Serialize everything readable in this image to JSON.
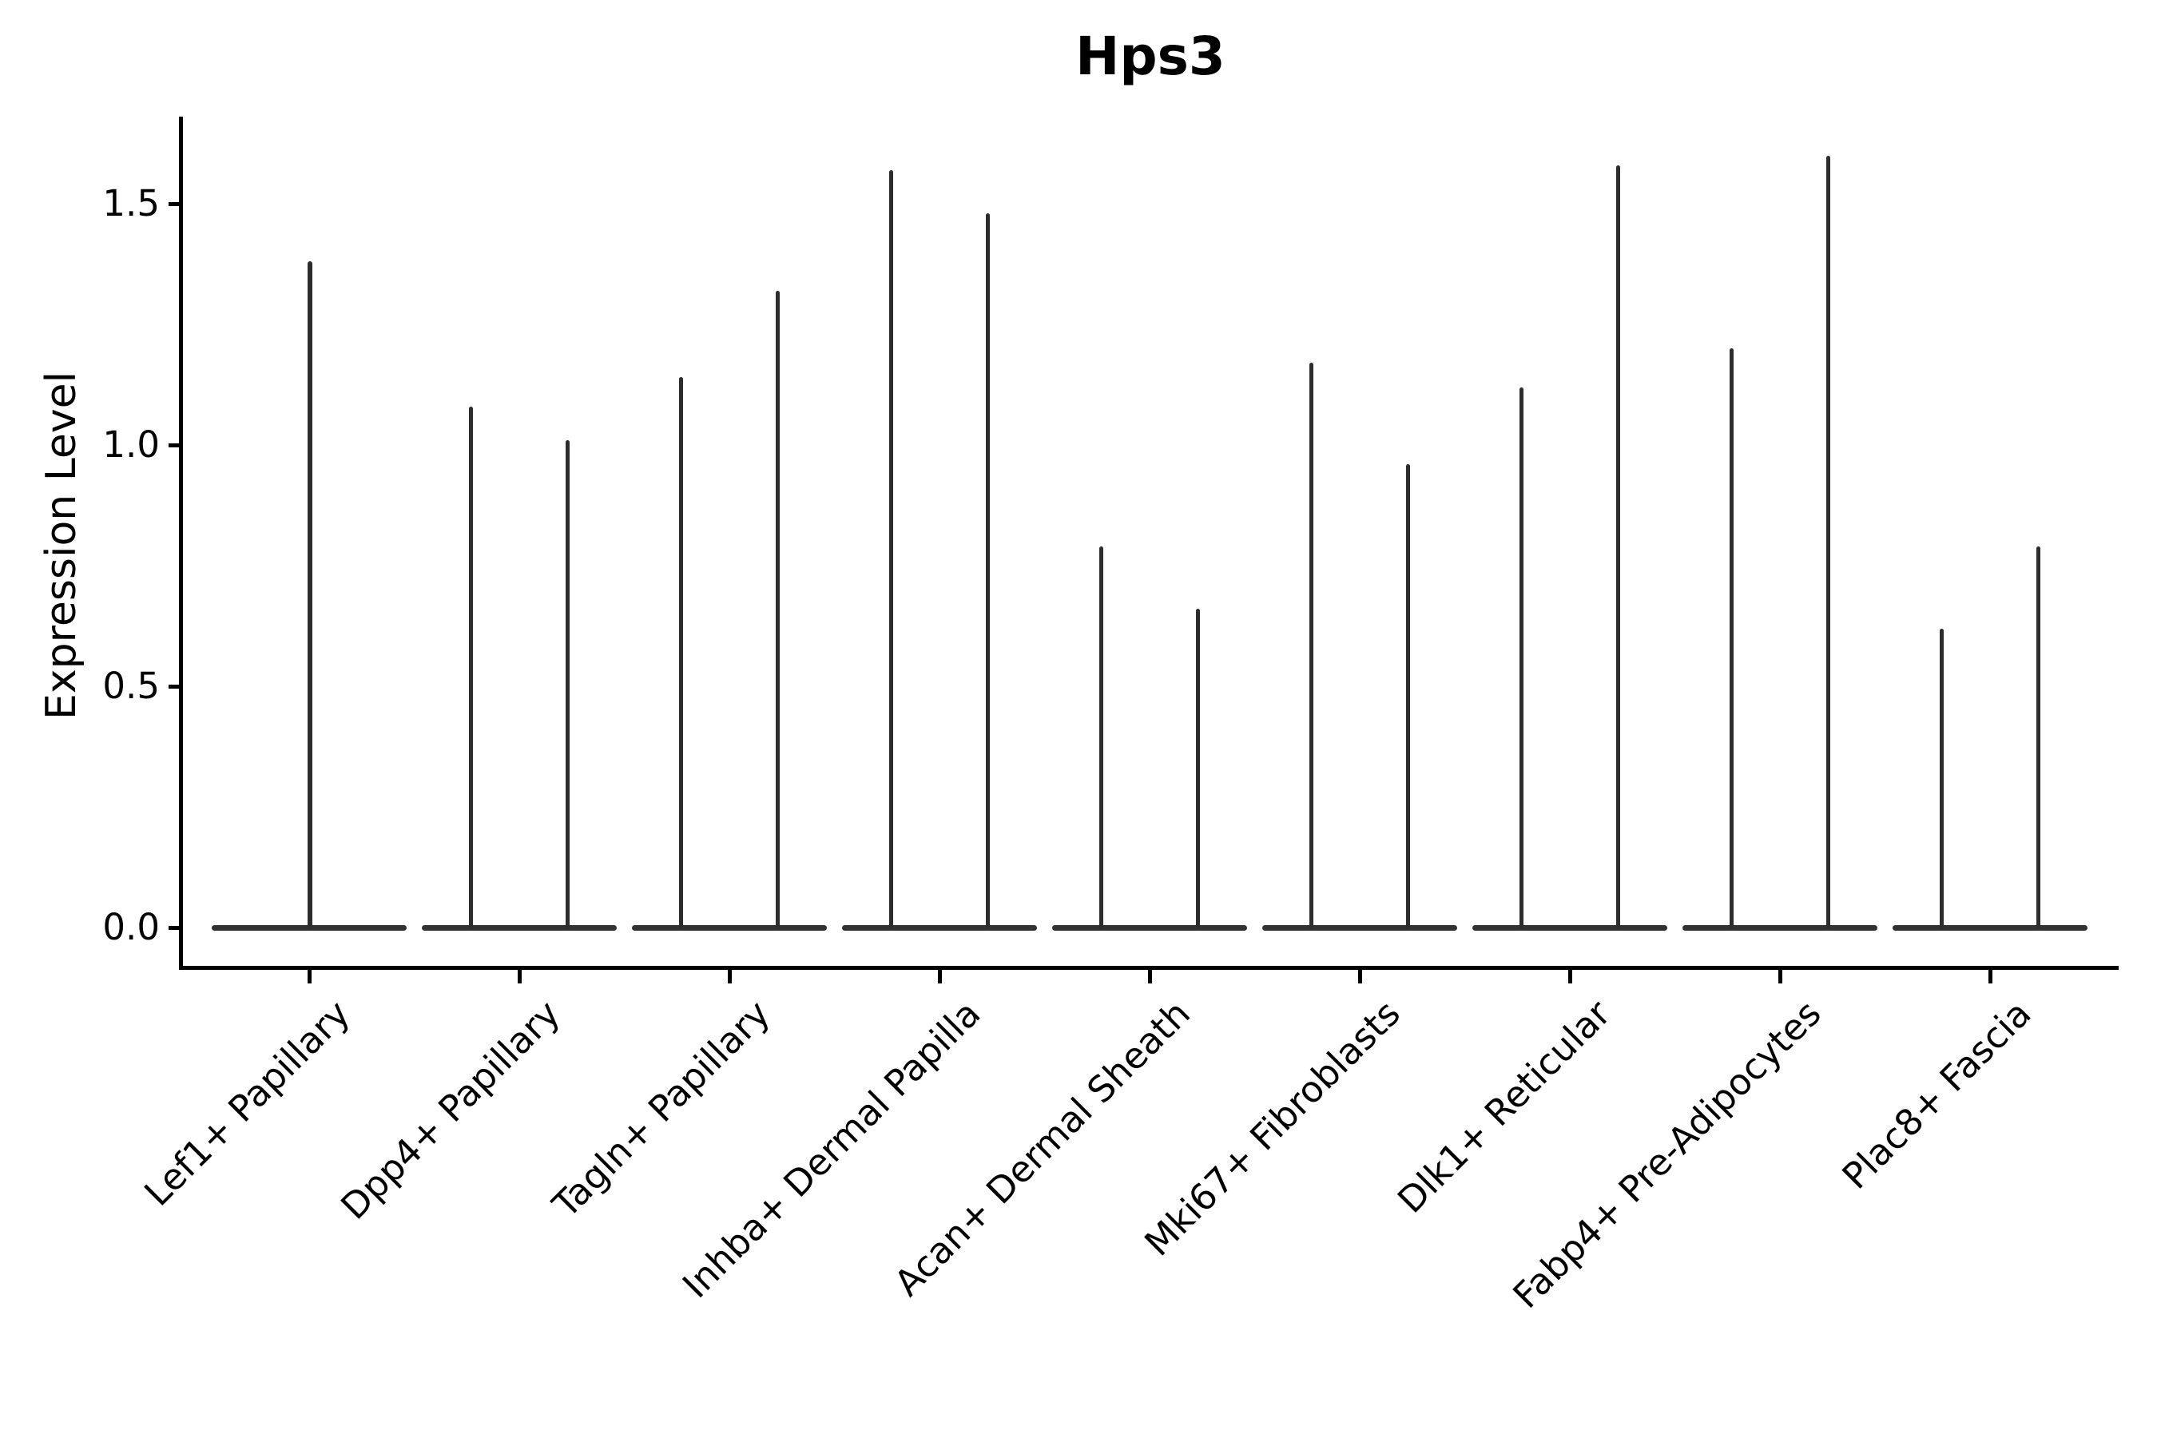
{
  "figure_title": "Hps3",
  "y_axis": {
    "label": "Expression Level",
    "ticks": [
      {
        "label": "1.5",
        "value": 1.5
      },
      {
        "label": "1.0",
        "value": 1.0
      },
      {
        "label": "0.5",
        "value": 0.5
      },
      {
        "label": "0.0",
        "value": 0.0
      }
    ]
  },
  "chart_data": {
    "type": "violin",
    "title": "Hps3",
    "xlabel": "",
    "ylabel": "Expression Level",
    "ylim": [
      -0.08,
      1.68
    ],
    "y_ticks": [
      0.0,
      0.5,
      1.0,
      1.5
    ],
    "grid": false,
    "legend_position": "none",
    "style": "needle-thin violins, monochrome dark-gray outlines, flat dense mass at 0 with a narrow spike up to the max expression; left and bottom spines only; x labels rotated 45 degrees",
    "categories": [
      {
        "label": "Lef1+ Papillary",
        "violin_max_values": [
          1.38
        ]
      },
      {
        "label": "Dpp4+ Papillary",
        "violin_max_values": [
          1.08,
          1.01
        ]
      },
      {
        "label": "Tagln+ Papillary",
        "violin_max_values": [
          1.14,
          1.32
        ]
      },
      {
        "label": "Inhba+ Dermal Papilla",
        "violin_max_values": [
          1.57,
          1.48
        ]
      },
      {
        "label": "Acan+ Dermal Sheath",
        "violin_max_values": [
          0.79,
          0.66
        ]
      },
      {
        "label": "Mki67+ Fibroblasts",
        "violin_max_values": [
          1.17,
          0.96
        ]
      },
      {
        "label": "Dlk1+ Reticular",
        "violin_max_values": [
          1.12,
          1.58
        ]
      },
      {
        "label": "Fabp4+ Pre-Adipocytes",
        "violin_max_values": [
          1.2,
          1.6
        ]
      },
      {
        "label": "Plac8+ Fascia",
        "violin_max_values": [
          0.62,
          0.79
        ]
      }
    ],
    "violin_min_value": 0.0,
    "colors": {
      "violin": "#2d2d2d",
      "axis": "#000000",
      "background": "#ffffff"
    }
  }
}
